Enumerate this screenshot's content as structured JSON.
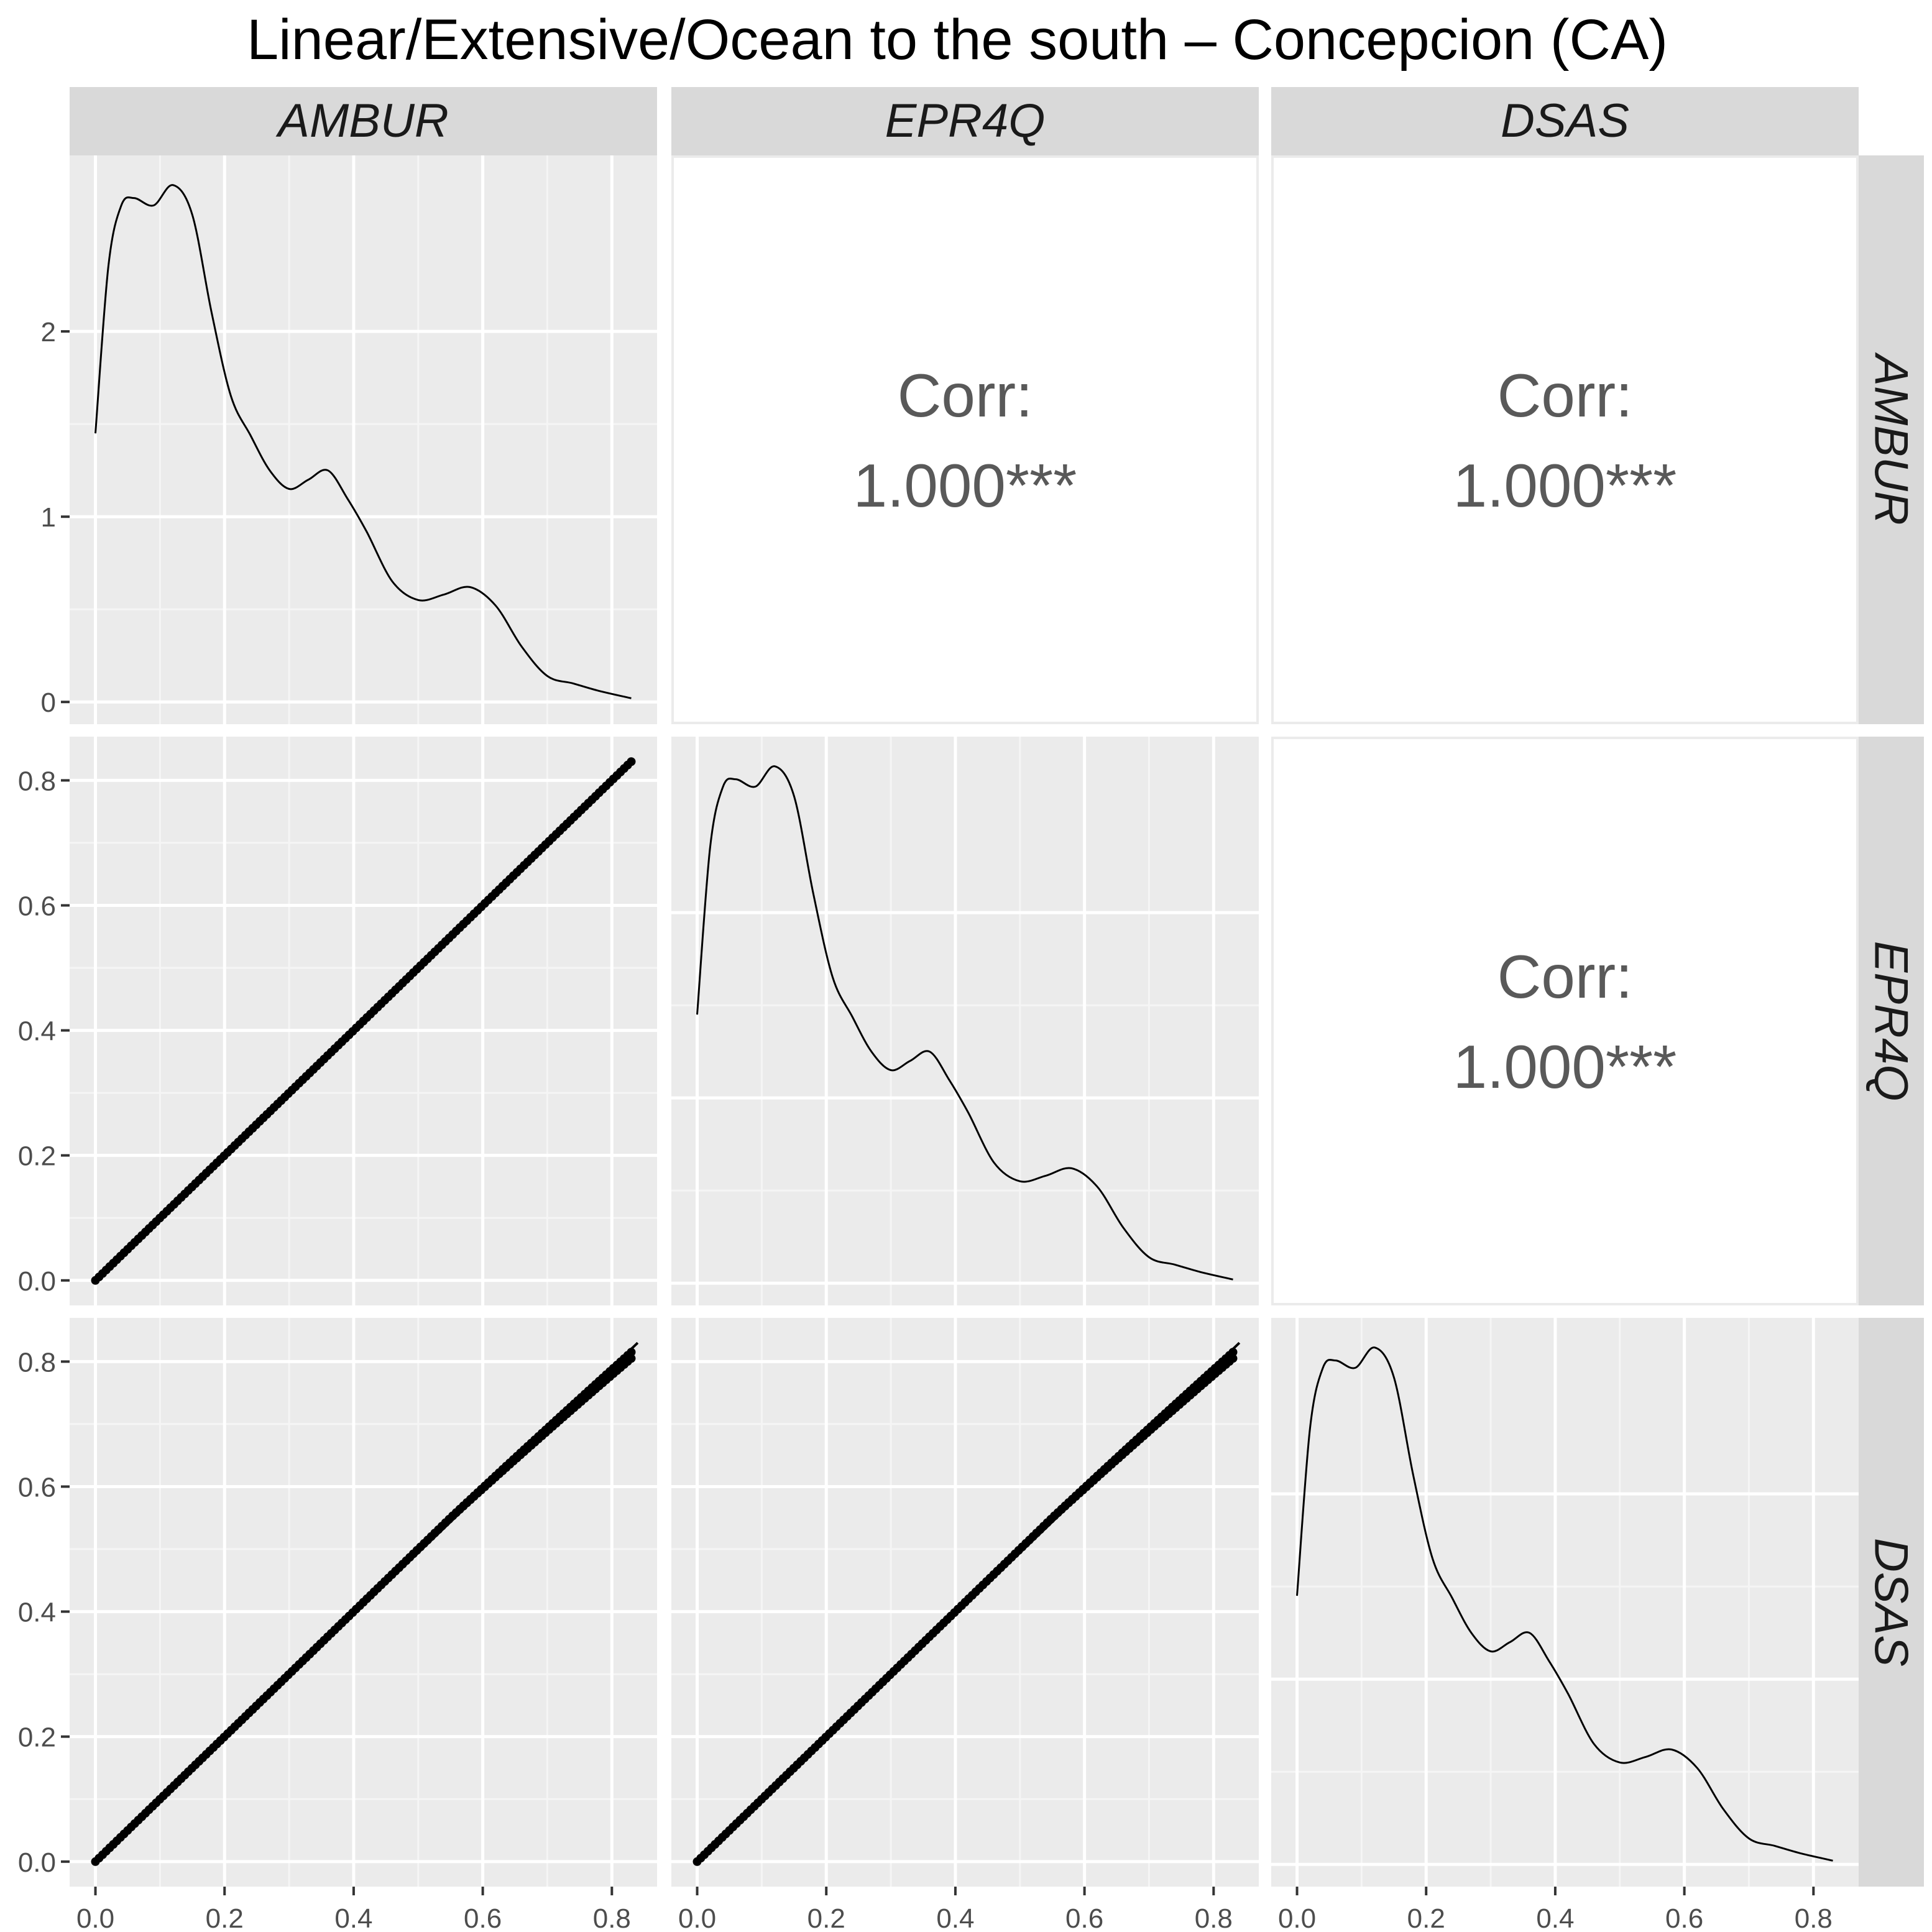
{
  "colors": {
    "panel_bg": "#EBEBEB",
    "strip_bg": "#D9D9D9",
    "grid_major": "#FFFFFF",
    "grid_minor": "#F5F5F5",
    "ink": "#000000",
    "tick_text": "#4D4D4D",
    "corr_text": "#595959",
    "corr_border": "#EBEBEB"
  },
  "chart_data": {
    "type": "pairs-matrix",
    "title": "Linear/Extensive/Ocean to the south – Concepcion (CA)",
    "variables": [
      "AMBUR",
      "EPR4Q",
      "DSAS"
    ],
    "x_range": [
      -0.04,
      0.87
    ],
    "x_ticks": [
      "0.0",
      "0.2",
      "0.4",
      "0.6",
      "0.8"
    ],
    "x_tick_values": [
      0.0,
      0.2,
      0.4,
      0.6,
      0.8
    ],
    "density": {
      "x": [
        0.0,
        0.02,
        0.04,
        0.06,
        0.09,
        0.12,
        0.15,
        0.18,
        0.21,
        0.24,
        0.27,
        0.3,
        0.33,
        0.36,
        0.39,
        0.42,
        0.46,
        0.5,
        0.54,
        0.58,
        0.62,
        0.66,
        0.7,
        0.74,
        0.78,
        0.83
      ],
      "y": [
        1.45,
        2.35,
        2.68,
        2.72,
        2.68,
        2.79,
        2.63,
        2.1,
        1.65,
        1.44,
        1.25,
        1.15,
        1.2,
        1.25,
        1.1,
        0.92,
        0.65,
        0.55,
        0.58,
        0.62,
        0.52,
        0.3,
        0.14,
        0.1,
        0.06,
        0.02
      ],
      "y_range": [
        -0.12,
        2.95
      ],
      "y_ticks": [
        "0",
        "1",
        "2"
      ],
      "y_tick_values": [
        0,
        1,
        2
      ]
    },
    "scatter": {
      "y_range": [
        -0.04,
        0.87
      ],
      "y_ticks": [
        "0.0",
        "0.2",
        "0.4",
        "0.6",
        "0.8"
      ],
      "y_tick_values": [
        0.0,
        0.2,
        0.4,
        0.6,
        0.8
      ],
      "identity_x": [
        0.0,
        0.83
      ],
      "identity_y": [
        0.0,
        0.83
      ],
      "fit_x": [
        0.0,
        0.84
      ],
      "fit_y": [
        0.0,
        0.83
      ],
      "dsas_factor": 0.97
    },
    "panels": [
      {
        "row": 0,
        "col": 0,
        "kind": "density",
        "label": "AMBUR density"
      },
      {
        "row": 0,
        "col": 1,
        "kind": "corr",
        "label": "Corr:",
        "value": "1.000***"
      },
      {
        "row": 0,
        "col": 2,
        "kind": "corr",
        "label": "Corr:",
        "value": "1.000***"
      },
      {
        "row": 1,
        "col": 0,
        "kind": "scatter",
        "label": "EPR4Q vs AMBUR"
      },
      {
        "row": 1,
        "col": 1,
        "kind": "density",
        "label": "EPR4Q density"
      },
      {
        "row": 1,
        "col": 2,
        "kind": "corr",
        "label": "Corr:",
        "value": "1.000***"
      },
      {
        "row": 2,
        "col": 0,
        "kind": "scatter",
        "label": "DSAS vs AMBUR"
      },
      {
        "row": 2,
        "col": 1,
        "kind": "scatter",
        "label": "DSAS vs EPR4Q"
      },
      {
        "row": 2,
        "col": 2,
        "kind": "density",
        "label": "DSAS density"
      }
    ]
  }
}
